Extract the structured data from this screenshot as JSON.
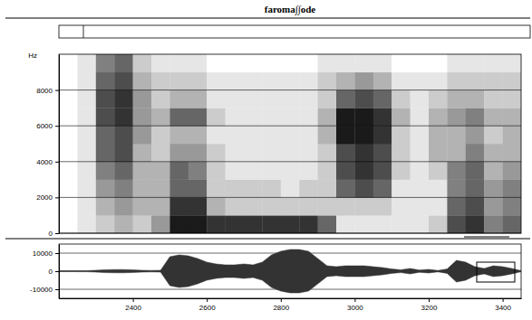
{
  "chart_data": [
    {
      "type": "heatmap",
      "title": "faroma∫∫ode",
      "y_label": "Hz",
      "xlim": [
        2200,
        3450
      ],
      "ylim": [
        0,
        10000
      ],
      "yticks": [
        0,
        2000,
        4000,
        6000,
        8000
      ],
      "grid": true,
      "tick_labels": "y",
      "color": "#1a1a1a",
      "time_bins": [
        2200,
        2250,
        2300,
        2350,
        2400,
        2450,
        2500,
        2550,
        2600,
        2650,
        2700,
        2750,
        2800,
        2850,
        2900,
        2950,
        3000,
        3050,
        3100,
        3150,
        3200,
        3250,
        3300,
        3350,
        3400,
        3450
      ],
      "freq_bins": [
        0,
        1000,
        2000,
        3000,
        4000,
        5000,
        6000,
        7000,
        8000,
        9000,
        10000
      ],
      "color_range": [
        0,
        9
      ],
      "cells": [
        [
          0,
          1,
          2,
          3,
          2,
          4,
          9,
          9,
          8,
          8,
          8,
          8,
          8,
          8,
          6,
          1,
          1,
          1,
          1,
          1,
          2,
          7,
          8,
          5,
          6
        ],
        [
          0,
          1,
          3,
          4,
          3,
          3,
          8,
          8,
          3,
          2,
          2,
          2,
          2,
          2,
          2,
          2,
          2,
          2,
          1,
          1,
          1,
          6,
          7,
          4,
          5
        ],
        [
          0,
          1,
          4,
          5,
          3,
          3,
          6,
          6,
          2,
          2,
          2,
          2,
          1,
          2,
          2,
          6,
          7,
          6,
          1,
          1,
          1,
          5,
          6,
          4,
          5
        ],
        [
          0,
          1,
          5,
          6,
          3,
          3,
          6,
          5,
          2,
          1,
          1,
          1,
          1,
          1,
          2,
          7,
          8,
          7,
          2,
          1,
          2,
          5,
          6,
          3,
          4
        ],
        [
          0,
          1,
          6,
          7,
          3,
          2,
          4,
          4,
          2,
          1,
          1,
          1,
          1,
          1,
          2,
          7,
          8,
          7,
          2,
          1,
          3,
          3,
          5,
          3,
          3
        ],
        [
          0,
          1,
          6,
          7,
          4,
          2,
          3,
          3,
          1,
          1,
          1,
          1,
          1,
          1,
          3,
          9,
          9,
          8,
          2,
          1,
          3,
          3,
          4,
          2,
          3
        ],
        [
          0,
          1,
          7,
          8,
          4,
          3,
          6,
          6,
          2,
          1,
          1,
          1,
          1,
          1,
          3,
          9,
          9,
          8,
          3,
          1,
          3,
          4,
          5,
          3,
          3
        ],
        [
          0,
          1,
          7,
          8,
          4,
          2,
          3,
          3,
          1,
          1,
          1,
          1,
          1,
          1,
          2,
          6,
          7,
          6,
          2,
          1,
          2,
          3,
          3,
          2,
          2
        ],
        [
          0,
          1,
          6,
          7,
          3,
          2,
          2,
          2,
          1,
          1,
          1,
          1,
          1,
          1,
          2,
          3,
          4,
          3,
          1,
          1,
          1,
          2,
          2,
          2,
          2
        ],
        [
          0,
          1,
          5,
          6,
          2,
          1,
          1,
          1,
          0,
          0,
          0,
          0,
          0,
          0,
          1,
          1,
          1,
          1,
          0,
          0,
          0,
          1,
          1,
          1,
          1
        ]
      ]
    },
    {
      "type": "area",
      "xlim": [
        2200,
        3450
      ],
      "ylim": [
        -15000,
        15000
      ],
      "xticks": [
        2400,
        2600,
        2800,
        3000,
        3200,
        3400
      ],
      "yticks": [
        -10000,
        0,
        10000
      ],
      "grid": true,
      "color": "#333333",
      "x": [
        2200,
        2225,
        2250,
        2275,
        2300,
        2325,
        2350,
        2375,
        2400,
        2425,
        2450,
        2475,
        2500,
        2525,
        2550,
        2575,
        2600,
        2625,
        2650,
        2675,
        2700,
        2725,
        2750,
        2775,
        2800,
        2825,
        2850,
        2875,
        2900,
        2925,
        2950,
        2975,
        3000,
        3025,
        3050,
        3075,
        3100,
        3125,
        3150,
        3175,
        3200,
        3225,
        3250,
        3275,
        3300,
        3325,
        3350,
        3375,
        3400,
        3425,
        3450
      ],
      "values": [
        200,
        200,
        300,
        300,
        500,
        800,
        900,
        900,
        700,
        500,
        400,
        500,
        8000,
        9000,
        8500,
        7000,
        5000,
        4000,
        3500,
        3500,
        4000,
        3500,
        5000,
        9000,
        11000,
        12000,
        12000,
        11000,
        7000,
        3000,
        2500,
        3000,
        3000,
        3000,
        2500,
        2000,
        1200,
        800,
        1500,
        600,
        1000,
        400,
        1200,
        6000,
        5000,
        2500,
        1500,
        3000,
        2500,
        1500,
        300
      ]
    }
  ]
}
